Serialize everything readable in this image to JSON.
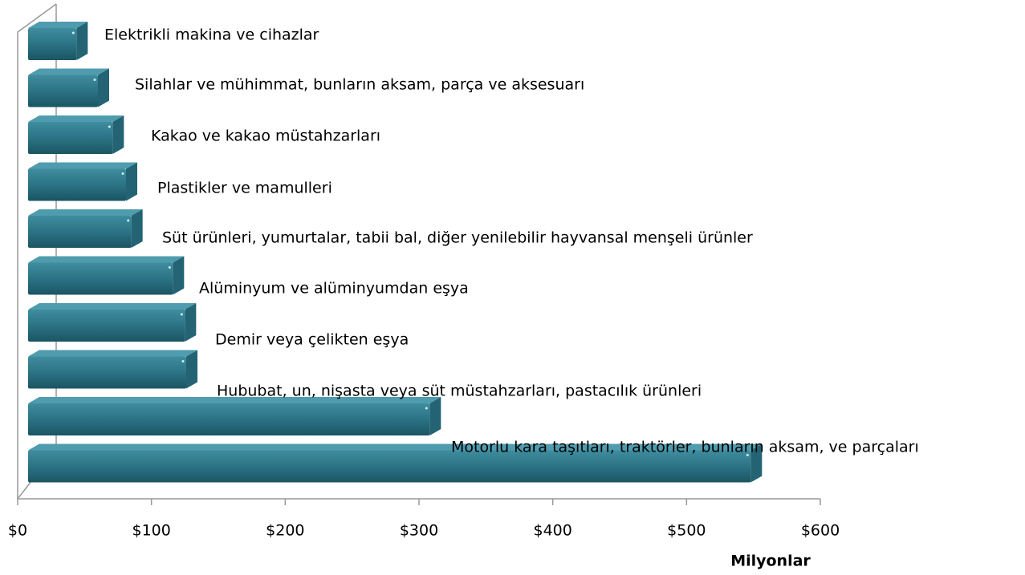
{
  "chart_data": {
    "type": "bar3d_horizontal",
    "categories": [
      "Elektrikli makina ve cihazlar",
      "Silahlar ve mühimmat, bunların aksam, parça ve aksesuarı",
      "Kakao ve kakao müstahzarları",
      "Plastikler ve mamulleri",
      "Süt ürünleri, yumurtalar, tabii bal, diğer yenilebilir hayvansal menşeli ürünler",
      "Alüminyum ve alüminyumdan eşya",
      "Demir veya çelikten eşya",
      "Hububat, un, nişasta veya süt müstahzarları, pastacılık ürünleri",
      null,
      "Motorlu kara taşıtları, traktörler,  bunların aksam, ve parçaları"
    ],
    "values": [
      44,
      60,
      71,
      81,
      85,
      116,
      125,
      126,
      308,
      548
    ],
    "color": "#2b7385",
    "xlim": [
      0,
      600
    ],
    "xticks": [
      {
        "value": 0,
        "label": "$0"
      },
      {
        "value": 100,
        "label": "$100"
      },
      {
        "value": 200,
        "label": "$200"
      },
      {
        "value": 300,
        "label": "$300"
      },
      {
        "value": 400,
        "label": "$400"
      },
      {
        "value": 500,
        "label": "$500"
      },
      {
        "value": 600,
        "label": "$600"
      }
    ],
    "x_label": "Milyonlar"
  }
}
